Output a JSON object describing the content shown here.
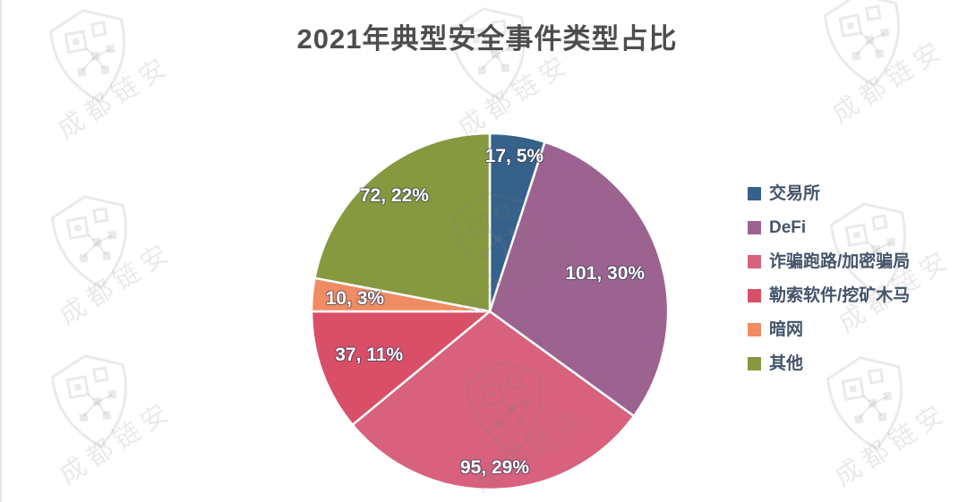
{
  "page": {
    "background": "#ffffff"
  },
  "title": {
    "text": "2021年典型安全事件类型占比",
    "color": "#4d4d4d"
  },
  "watermark": {
    "text": "成都链安",
    "color": "rgba(125,125,125,0.16)"
  },
  "legend": {
    "text_color": "#44546a",
    "position": "right"
  },
  "chart_data": {
    "type": "pie",
    "title": "2021年典型安全事件类型占比",
    "legend_position": "right",
    "direction": "clockwise",
    "start_angle_deg": 0,
    "total": 332,
    "slices": [
      {
        "label": "交易所",
        "value": 17,
        "percent": 5,
        "display_label": "17, 5%",
        "color": "#35618b"
      },
      {
        "label": "DeFi",
        "value": 101,
        "percent": 30,
        "display_label": "101, 30%",
        "color": "#9d6390"
      },
      {
        "label": "诈骗跑路/加密骗局",
        "value": 95,
        "percent": 29,
        "display_label": "95, 29%",
        "color": "#d8617e"
      },
      {
        "label": "勒索软件/挖矿木马",
        "value": 37,
        "percent": 11,
        "display_label": "37, 11%",
        "color": "#d94f68"
      },
      {
        "label": "暗网",
        "value": 10,
        "percent": 3,
        "display_label": "10, 3%",
        "color": "#f08b63"
      },
      {
        "label": "其他",
        "value": 72,
        "percent": 22,
        "display_label": "72, 22%",
        "color": "#87993f"
      }
    ],
    "label_style": {
      "color": "#ffffff",
      "format": "value, percent%"
    }
  }
}
